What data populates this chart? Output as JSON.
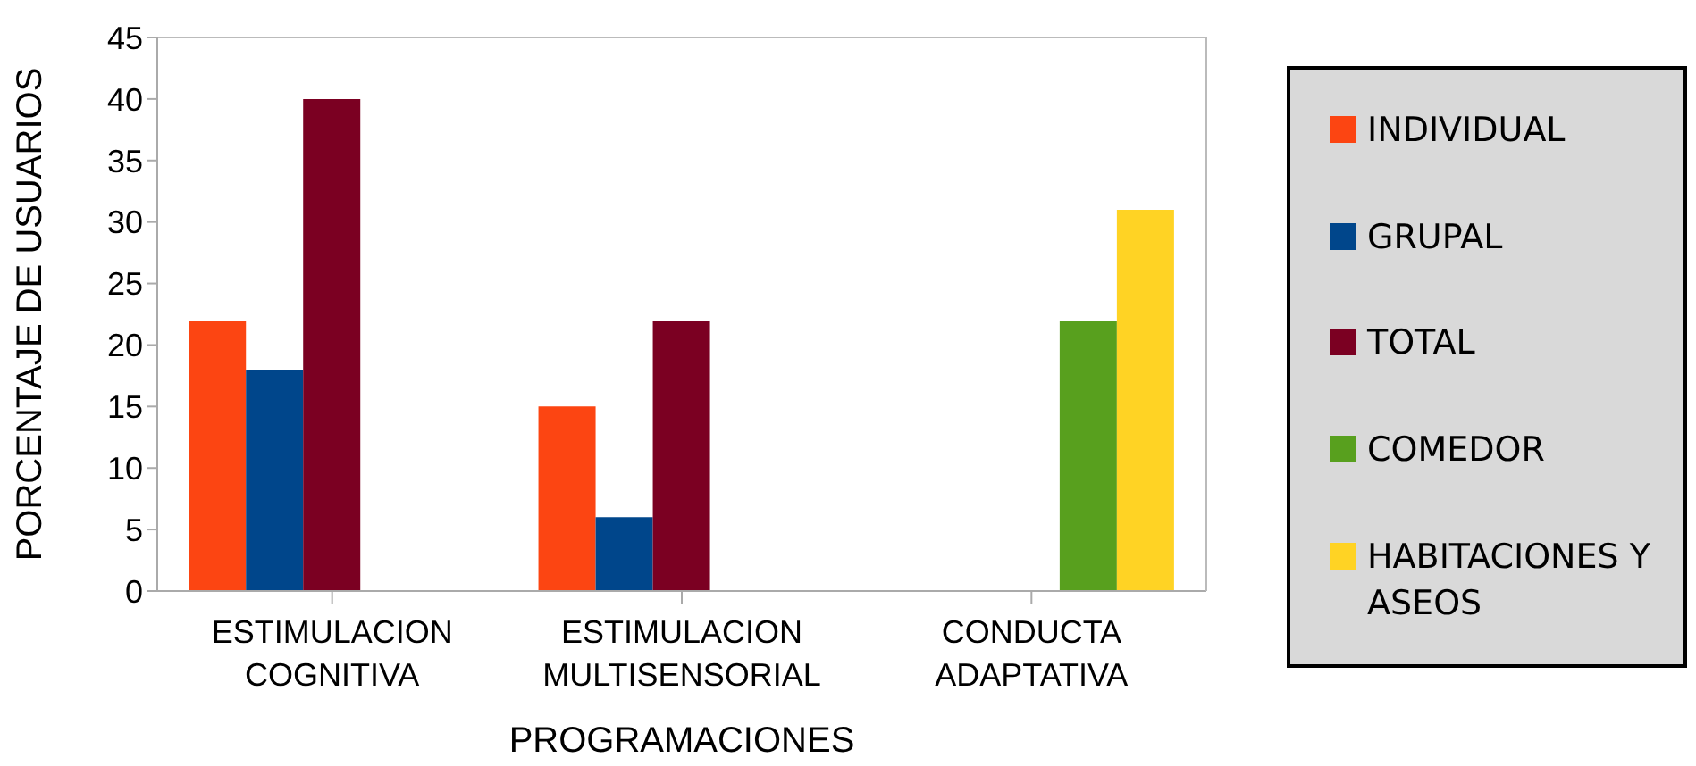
{
  "chart_data": {
    "type": "bar",
    "xlabel": "PROGRAMACIONES",
    "ylabel": "PORCENTAJE DE USUARIOS",
    "categories": [
      "ESTIMULACION COGNITIVA",
      "ESTIMULACION MULTISENSORIAL",
      "CONDUCTA ADAPTATIVA"
    ],
    "series": [
      {
        "name": "INDIVIDUAL",
        "color": "#fc4512",
        "values": [
          22,
          15,
          null
        ]
      },
      {
        "name": "GRUPAL",
        "color": "#00468b",
        "values": [
          18,
          6,
          null
        ]
      },
      {
        "name": "TOTAL",
        "color": "#7b0022",
        "values": [
          40,
          22,
          null
        ]
      },
      {
        "name": "COMEDOR",
        "color": "#58a01e",
        "values": [
          null,
          null,
          22
        ]
      },
      {
        "name": "HABITACIONES Y ASEOS",
        "color": "#ffd324",
        "values": [
          null,
          null,
          31
        ]
      }
    ],
    "ylim": [
      0,
      45
    ],
    "yticks": [
      0,
      5,
      10,
      15,
      20,
      25,
      30,
      35,
      40,
      45
    ],
    "grid": false,
    "legend": "right"
  }
}
